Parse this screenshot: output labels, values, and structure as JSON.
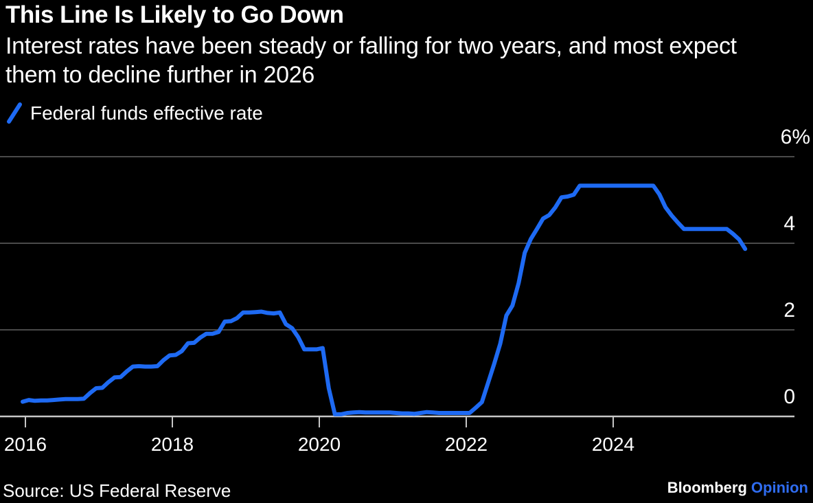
{
  "header": {
    "title": "This Line Is Likely to Go Down",
    "subtitle_line1": "Interest rates have been steady or falling for two years, and most expect",
    "subtitle_line2": "them to decline further in 2026"
  },
  "legend": {
    "swatch_icon": "blue-line-slash-icon",
    "label": "Federal funds effective rate"
  },
  "source": {
    "text": "Source: US Federal Reserve"
  },
  "branding": {
    "name": "Bloomberg",
    "unit": "Opinion"
  },
  "colors": {
    "background": "#000000",
    "text": "#ffffff",
    "line": "#1e6af3",
    "grid": "#4a4a4a",
    "axis": "#c7c7c7",
    "brand_blue": "#2f6cf0"
  },
  "chart_data": {
    "type": "line",
    "title": "This Line Is Likely to Go Down",
    "xlabel": "",
    "ylabel": "%",
    "ylim": [
      0,
      6
    ],
    "grid": "horizontal",
    "legend_position": "top-left",
    "y_ticks": [
      {
        "label": "6%",
        "value": 6
      },
      {
        "label": "4",
        "value": 4
      },
      {
        "label": "2",
        "value": 2
      },
      {
        "label": "0",
        "value": 0
      }
    ],
    "x_ticks": [
      {
        "label": "2016",
        "value": 2016
      },
      {
        "label": "2018",
        "value": 2018
      },
      {
        "label": "2020",
        "value": 2020
      },
      {
        "label": "2022",
        "value": 2022
      },
      {
        "label": "2024",
        "value": 2024
      }
    ],
    "series": [
      {
        "name": "Federal funds effective rate",
        "unit": "%",
        "frequency": "monthly",
        "start": "2016-01",
        "end": "2025-11",
        "values": [
          0.34,
          0.38,
          0.36,
          0.37,
          0.37,
          0.38,
          0.39,
          0.4,
          0.4,
          0.4,
          0.41,
          0.54,
          0.65,
          0.66,
          0.79,
          0.9,
          0.91,
          1.04,
          1.15,
          1.16,
          1.15,
          1.15,
          1.16,
          1.3,
          1.41,
          1.42,
          1.51,
          1.69,
          1.7,
          1.82,
          1.91,
          1.91,
          1.95,
          2.19,
          2.2,
          2.27,
          2.4,
          2.4,
          2.41,
          2.42,
          2.39,
          2.38,
          2.4,
          2.13,
          2.04,
          1.83,
          1.55,
          1.55,
          1.55,
          1.58,
          0.65,
          0.05,
          0.05,
          0.08,
          0.09,
          0.1,
          0.09,
          0.09,
          0.09,
          0.09,
          0.09,
          0.08,
          0.07,
          0.07,
          0.06,
          0.08,
          0.1,
          0.09,
          0.08,
          0.08,
          0.08,
          0.08,
          0.08,
          0.08,
          0.2,
          0.33,
          0.77,
          1.21,
          1.68,
          2.33,
          2.56,
          3.08,
          3.78,
          4.1,
          4.33,
          4.57,
          4.65,
          4.83,
          5.06,
          5.08,
          5.12,
          5.33,
          5.33,
          5.33,
          5.33,
          5.33,
          5.33,
          5.33,
          5.33,
          5.33,
          5.33,
          5.33,
          5.33,
          5.33,
          5.13,
          4.83,
          4.64,
          4.48,
          4.33,
          4.33,
          4.33,
          4.33,
          4.33,
          4.33,
          4.33,
          4.33,
          4.22,
          4.09,
          3.87
        ]
      }
    ]
  }
}
